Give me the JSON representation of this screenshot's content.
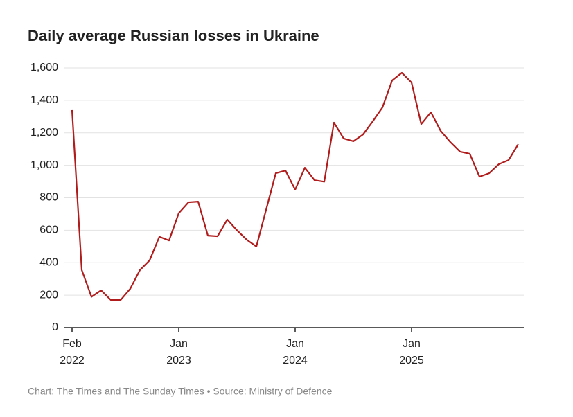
{
  "chart_data": {
    "type": "line",
    "title": "Daily average Russian losses in Ukraine",
    "source": "Chart: The Times and The Sunday Times • Source: Ministry of Defence",
    "x": [
      "2022-02",
      "2022-03",
      "2022-04",
      "2022-05",
      "2022-06",
      "2022-07",
      "2022-08",
      "2022-09",
      "2022-10",
      "2022-11",
      "2022-12",
      "2023-01",
      "2023-02",
      "2023-03",
      "2023-04",
      "2023-05",
      "2023-06",
      "2023-07",
      "2023-08",
      "2023-09",
      "2023-10",
      "2023-11",
      "2023-12",
      "2024-01",
      "2024-02",
      "2024-03",
      "2024-04",
      "2024-05",
      "2024-06",
      "2024-07",
      "2024-08",
      "2024-09",
      "2024-10",
      "2024-11",
      "2024-12",
      "2025-01",
      "2025-02",
      "2025-03",
      "2025-04",
      "2025-05",
      "2025-06",
      "2025-07",
      "2025-08",
      "2025-09",
      "2025-10",
      "2025-11",
      "2025-12"
    ],
    "series": [
      {
        "name": "Daily average losses",
        "color": "#b01c1c",
        "values": [
          1340,
          355,
          190,
          230,
          170,
          170,
          240,
          355,
          415,
          560,
          537,
          705,
          772,
          776,
          567,
          563,
          666,
          600,
          542,
          500,
          725,
          951,
          968,
          850,
          985,
          908,
          899,
          1263,
          1165,
          1148,
          1190,
          1271,
          1357,
          1523,
          1570,
          1510,
          1254,
          1327,
          1212,
          1143,
          1084,
          1071,
          930,
          951,
          1007,
          1032,
          1130
        ]
      }
    ],
    "xlim": [
      "2022-01",
      "2026-01"
    ],
    "xticks": [
      {
        "value": "2022-02",
        "label": "Feb\n2022"
      },
      {
        "value": "2023-01",
        "label": "Jan\n2023"
      },
      {
        "value": "2024-01",
        "label": "Jan\n2024"
      },
      {
        "value": "2025-01",
        "label": "Jan\n2025"
      }
    ],
    "ylim": [
      0,
      1600
    ],
    "yticks": [
      0,
      200,
      400,
      600,
      800,
      {
        "value": 1000,
        "label": "1,000"
      },
      {
        "value": 1200,
        "label": "1,200"
      },
      {
        "value": 1400,
        "label": "1,400"
      },
      {
        "value": 1600,
        "label": "1,600"
      }
    ],
    "grid": true
  }
}
